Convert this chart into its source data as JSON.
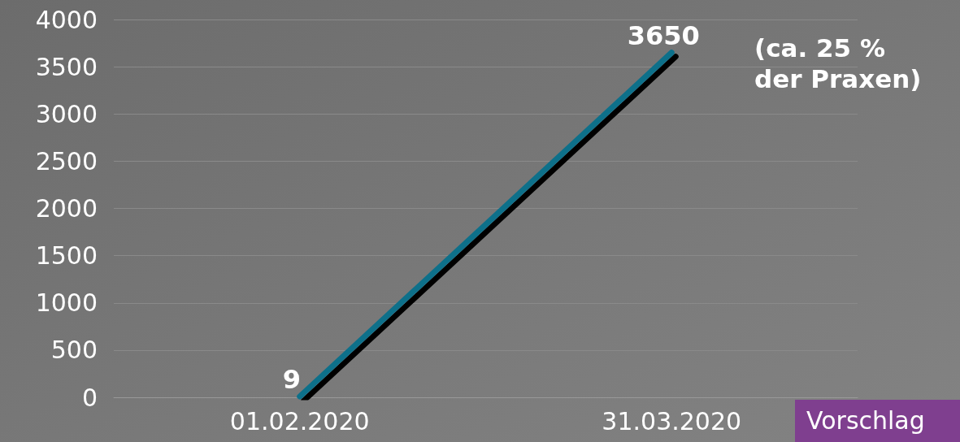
{
  "chart_data": {
    "type": "line",
    "categories": [
      "01.02.2020",
      "31.03.2020"
    ],
    "series": [
      {
        "color": "#0e6f8a",
        "values": [
          9,
          3650
        ]
      }
    ],
    "ylim": [
      0,
      4000
    ],
    "yticks": [
      0,
      500,
      1000,
      1500,
      2000,
      2500,
      3000,
      3500,
      4000
    ],
    "grid": "y",
    "data_labels": true,
    "marker": "none",
    "line_style": "solid",
    "annotations": [
      "(ca. 25 %\nder Praxen)",
      "Vorschlag"
    ]
  }
}
